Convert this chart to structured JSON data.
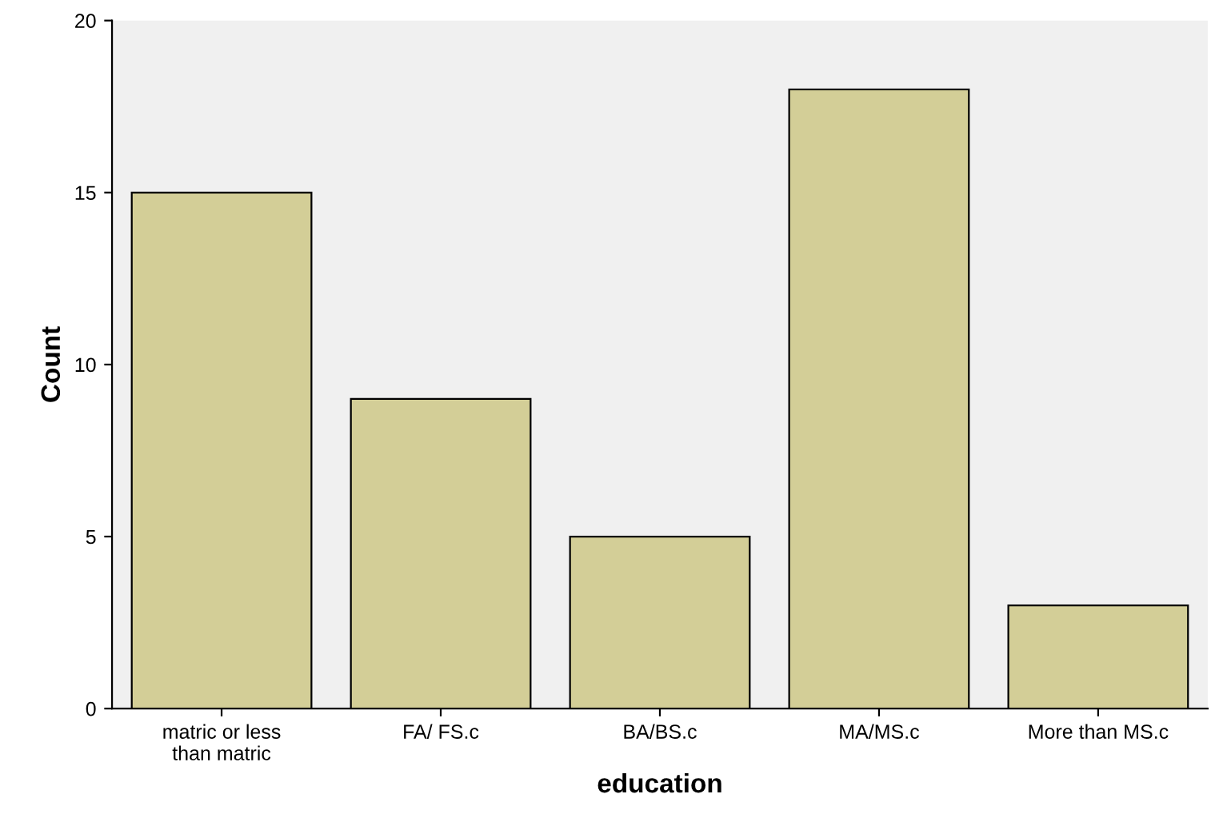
{
  "chart_data": {
    "type": "bar",
    "xlabel": "education",
    "ylabel": "Count",
    "categories": [
      "matric or less\nthan matric",
      "FA/ FS.c",
      "BA/BS.c",
      "MA/MS.c",
      "More than MS.c"
    ],
    "values": [
      15,
      9,
      5,
      18,
      3
    ],
    "color": "#d3ce97",
    "ylim": [
      0,
      20
    ],
    "yticks": [
      0,
      5,
      10,
      15,
      20
    ],
    "grid": false,
    "legend": false
  }
}
